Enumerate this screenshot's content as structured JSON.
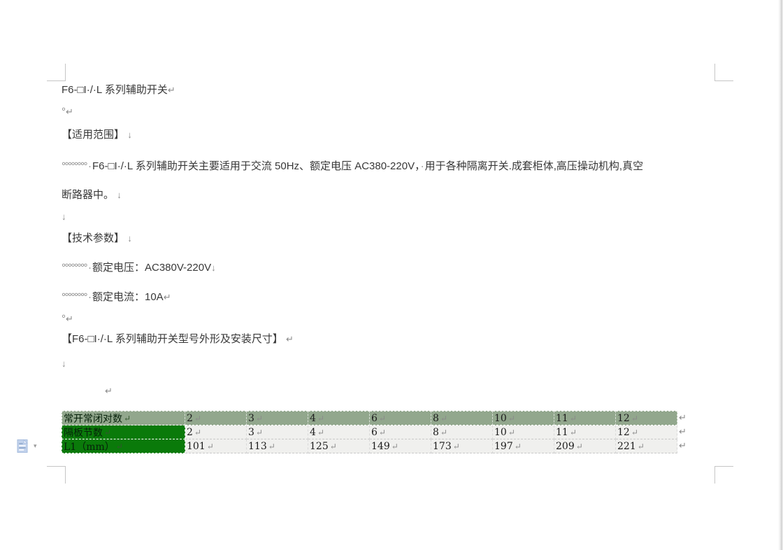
{
  "marks": {
    "para_mark": "↵",
    "line_mark": "↓",
    "space_circle": "°",
    "space_run": "°°°°°°°°",
    "space_dot": "·"
  },
  "doc": {
    "title": "F6-□I·/·L 系列辅助开关",
    "scope_heading": "【适用范围】",
    "scope_text_a": "F6-□I·/·L 系列辅助开关主要适用于交流 50Hz、额定电压 AC380-220V，",
    "scope_text_b": "用于各种隔离开关.成套柜体,高压操动机构,真空",
    "scope_text_c": "断路器中。",
    "params_heading": "【技术参数】",
    "param_voltage": "额定电压：AC380V-220V",
    "param_current": "额定电流：10A",
    "dims_heading": "【F6-□I·/·L 系列辅助开关型号外形及安装尺寸】"
  },
  "table": {
    "rows": [
      {
        "label": "常开常闭对数",
        "values": [
          "2",
          "3",
          "4",
          "6",
          "8",
          "10",
          "11",
          "12"
        ]
      },
      {
        "label": "隔板节数",
        "values": [
          "2",
          "3",
          "4",
          "6",
          "8",
          "10",
          "11",
          "12"
        ]
      },
      {
        "label": "L1（mm）",
        "values": [
          "101",
          "113",
          "125",
          "149",
          "173",
          "197",
          "209",
          "221"
        ]
      }
    ]
  },
  "icons": {
    "paste_options": "paste-options-icon",
    "dropdown_arrow": "▾"
  },
  "colors": {
    "row_selected_light": "#92a78d",
    "cell_selected_dark": "#0a7a0a",
    "cell_plain": "#f0f0ee",
    "format_mark": "#8a8a8a",
    "text": "#383838"
  }
}
